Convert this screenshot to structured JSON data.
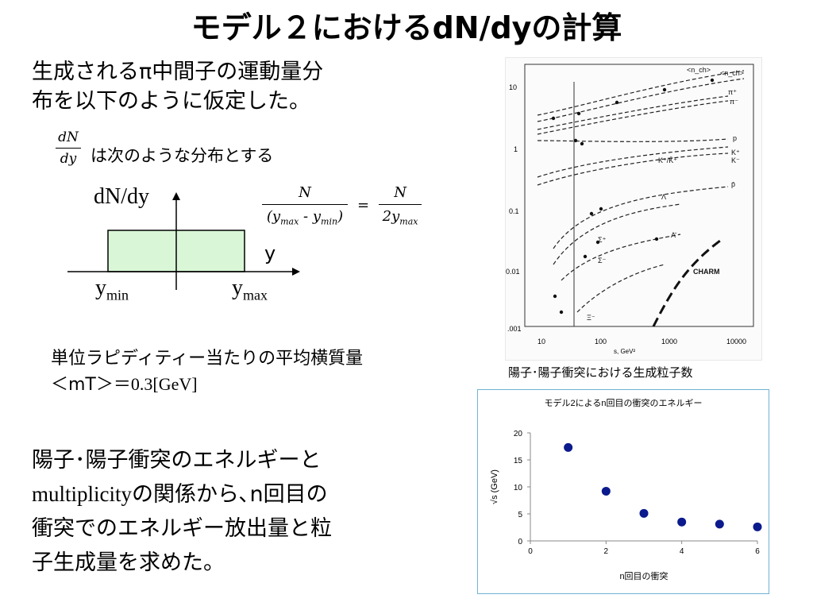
{
  "title": "モデル２におけるdN/dyの計算",
  "intro": {
    "line1": "生成されるπ中間子の運動量分",
    "line2": "布を以下のように仮定した。"
  },
  "dist_frac": {
    "num": "dN",
    "den": "dy"
  },
  "dist_text": "は次のような分布とする",
  "box_plot": {
    "y_axis_label": "dN/dy",
    "x_axis_label": "y",
    "left_label": "y",
    "left_sub": "min",
    "right_label": "y",
    "right_sub": "max",
    "fill_color": "#d9f7d6"
  },
  "equation": {
    "lhs_num": "N",
    "lhs_den_open": "(y",
    "lhs_den_sub1": "max",
    "lhs_den_mid": " - y",
    "lhs_den_sub2": "min",
    "lhs_den_close": ")",
    "eq": "=",
    "rhs_num": "N",
    "rhs_den": "2y",
    "rhs_sub": "max"
  },
  "rapidity": {
    "line1": "単位ラピディティー当たりの平均横質量",
    "line2_a": "＜mT＞＝",
    "line2_b": "0.3[GeV]"
  },
  "energy_text": {
    "line1": "陽子･陽子衝突のエネルギーと",
    "line2_a": "multiplicity",
    "line2_b": "の関係から､n回目の",
    "line3": "衝突でのエネルギー放出量と粒",
    "line4": "子生成量を求めた。"
  },
  "figure": {
    "caption": "陽子･陽子衝突における生成粒子数",
    "x_axis_label": "s, GeV²",
    "x_ticks": [
      "10",
      "100",
      "1000",
      "10000"
    ],
    "y_ticks": [
      "10",
      "1",
      "0.1",
      "0.01",
      ".001"
    ],
    "curve_labels": [
      "<n_ch>",
      "<n_ch>",
      "π⁺",
      "π⁻",
      "p",
      "K⁺/K̄⁺",
      "K⁺",
      "K⁻",
      "p̄",
      "Λ",
      "Σ⁺",
      "Σ⁻",
      "Λ̄",
      "Ξ⁻",
      "CHARM"
    ]
  },
  "chart_data": {
    "type": "scatter",
    "title": "モデル2によるn回目の衝突のエネルギー",
    "xlabel": "n回目の衝突",
    "ylabel": "√s (GeV)",
    "xlim": [
      0,
      6
    ],
    "ylim": [
      0,
      20
    ],
    "x_ticks": [
      0,
      2,
      4,
      6
    ],
    "y_ticks": [
      0,
      5,
      10,
      15,
      20
    ],
    "grid": false,
    "marker_color": "#0b1a8c",
    "points": [
      {
        "x": 1,
        "y": 17.3
      },
      {
        "x": 2,
        "y": 9.2
      },
      {
        "x": 3,
        "y": 5.1
      },
      {
        "x": 4,
        "y": 3.5
      },
      {
        "x": 5,
        "y": 3.1
      },
      {
        "x": 6,
        "y": 2.6
      }
    ]
  }
}
